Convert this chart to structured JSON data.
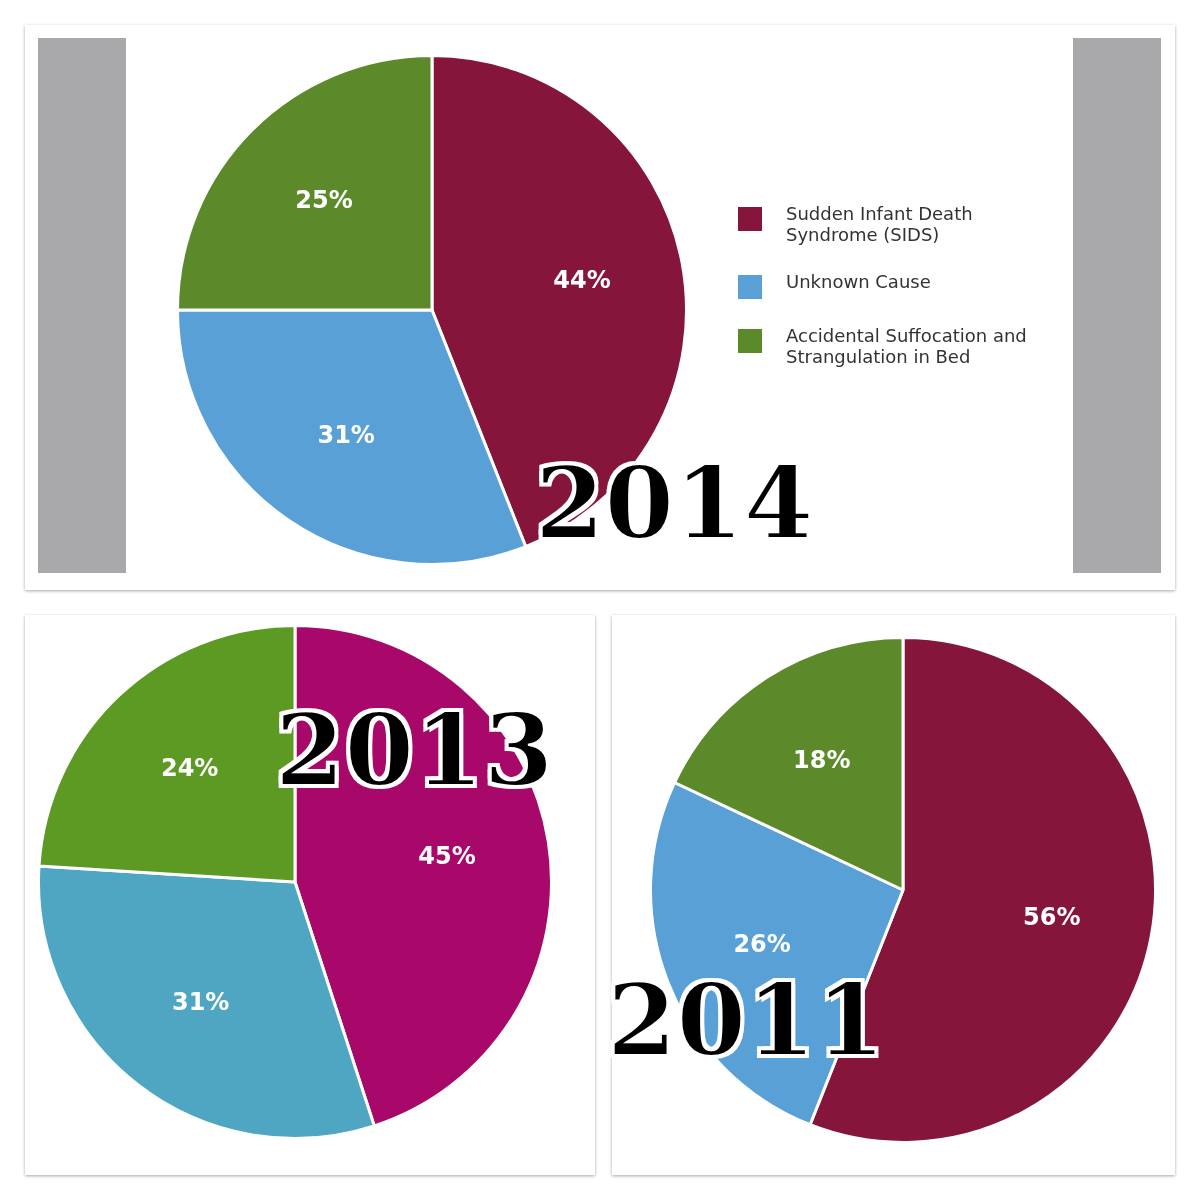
{
  "chart_data": [
    {
      "type": "pie",
      "title": "2014",
      "categories": [
        "Sudden Infant Death Syndrome (SIDS)",
        "Unknown Cause",
        "Accidental Suffocation and Strangulation in Bed"
      ],
      "values": [
        44,
        31,
        25
      ],
      "colors": [
        "#86153c",
        "#58a0d6",
        "#5c8a2a"
      ],
      "value_labels": [
        "44%",
        "31%",
        "25%"
      ],
      "legend": "right"
    },
    {
      "type": "pie",
      "title": "2013",
      "categories": [
        null,
        null,
        null
      ],
      "values": [
        45,
        31,
        24
      ],
      "colors": [
        "#a8086a",
        "#4fa6c2",
        "#5c9a24"
      ],
      "value_labels": [
        "45%",
        "31%",
        "24%"
      ]
    },
    {
      "type": "pie",
      "title": "2011",
      "categories": [
        null,
        null,
        null
      ],
      "values": [
        56,
        26,
        18
      ],
      "colors": [
        "#86153c",
        "#58a0d6",
        "#5c8a2a"
      ],
      "value_labels": [
        "56%",
        "26%",
        "18%"
      ]
    }
  ]
}
